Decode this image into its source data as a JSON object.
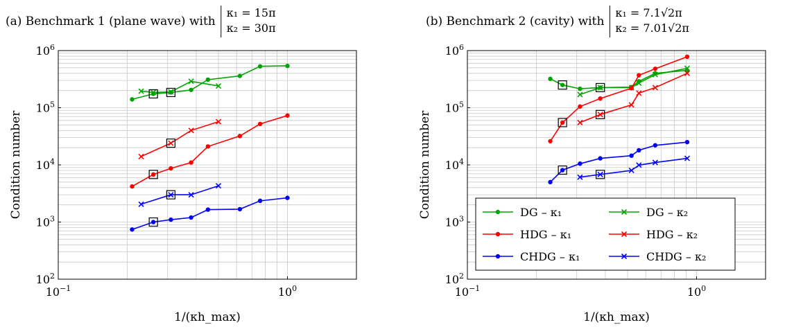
{
  "chart_data": [
    {
      "type": "line",
      "title": "(a) Benchmark 1 (plane wave) with",
      "condition_lines": [
        "κ₁ = 15π",
        "κ₂ = 30π"
      ],
      "xlabel": "1/(κh_max)",
      "ylabel": "Condition number",
      "xscale": "log",
      "yscale": "log",
      "xlim": [
        0.1,
        2
      ],
      "ylim": [
        100,
        1000000
      ],
      "grid": true,
      "series": [
        {
          "name": "DG – κ₁",
          "color": "#00a400",
          "marker": "dot",
          "x": [
            0.21,
            0.26,
            0.31,
            0.38,
            0.45,
            0.62,
            0.76,
            1.0
          ],
          "y": [
            140000,
            175000,
            185000,
            205000,
            310000,
            360000,
            530000,
            540000
          ]
        },
        {
          "name": "DG – κ₂",
          "color": "#00a400",
          "marker": "cross",
          "x": [
            0.23,
            0.26,
            0.31,
            0.38,
            0.5
          ],
          "y": [
            195000,
            185000,
            190000,
            290000,
            240000
          ]
        },
        {
          "name": "HDG – κ₁",
          "color": "#ff0000",
          "marker": "dot",
          "x": [
            0.21,
            0.26,
            0.31,
            0.38,
            0.45,
            0.62,
            0.76,
            1.0
          ],
          "y": [
            4200,
            6800,
            8700,
            11000,
            21000,
            32000,
            52000,
            73000
          ]
        },
        {
          "name": "HDG – κ₂",
          "color": "#ff0000",
          "marker": "cross",
          "x": [
            0.23,
            0.31,
            0.38,
            0.5
          ],
          "y": [
            14000,
            24000,
            40000,
            57000
          ]
        },
        {
          "name": "CHDG – κ₁",
          "color": "#0000ff",
          "marker": "dot",
          "x": [
            0.21,
            0.26,
            0.31,
            0.38,
            0.45,
            0.62,
            0.76,
            1.0
          ],
          "y": [
            740,
            1000,
            1100,
            1200,
            1650,
            1680,
            2350,
            2650
          ]
        },
        {
          "name": "CHDG – κ₂",
          "color": "#0000ff",
          "marker": "cross",
          "x": [
            0.23,
            0.31,
            0.38,
            0.5
          ],
          "y": [
            2050,
            3000,
            3000,
            4300
          ]
        }
      ],
      "boxed_points": [
        {
          "x": 0.26,
          "y": 175000
        },
        {
          "x": 0.31,
          "y": 185000
        },
        {
          "x": 0.31,
          "y": 24000
        },
        {
          "x": 0.26,
          "y": 6800
        },
        {
          "x": 0.31,
          "y": 3000
        },
        {
          "x": 0.26,
          "y": 1000
        }
      ],
      "legend": null
    },
    {
      "type": "line",
      "title": "(b) Benchmark 2 (cavity) with",
      "condition_lines": [
        "κ₁ = 7.1√2π",
        "κ₂ = 7.01√2π"
      ],
      "xlabel": "1/(κh_max)",
      "ylabel": "Condition number",
      "xscale": "log",
      "yscale": "log",
      "xlim": [
        0.1,
        2
      ],
      "ylim": [
        100,
        1000000
      ],
      "grid": true,
      "series": [
        {
          "name": "DG – κ₁",
          "color": "#00a400",
          "marker": "dot",
          "x": [
            0.23,
            0.26,
            0.31,
            0.38,
            0.52,
            0.56,
            0.66,
            0.91
          ],
          "y": [
            320000,
            250000,
            215000,
            225000,
            230000,
            290000,
            400000,
            450000
          ]
        },
        {
          "name": "DG – κ₂",
          "color": "#00a400",
          "marker": "cross",
          "x": [
            0.31,
            0.38,
            0.52,
            0.56,
            0.66,
            0.91
          ],
          "y": [
            170000,
            225000,
            225000,
            270000,
            380000,
            490000
          ]
        },
        {
          "name": "HDG – κ₁",
          "color": "#ff0000",
          "marker": "dot",
          "x": [
            0.23,
            0.26,
            0.31,
            0.38,
            0.52,
            0.56,
            0.66,
            0.91
          ],
          "y": [
            26000,
            55000,
            105000,
            145000,
            220000,
            370000,
            480000,
            780000
          ]
        },
        {
          "name": "HDG – κ₂",
          "color": "#ff0000",
          "marker": "cross",
          "x": [
            0.31,
            0.38,
            0.52,
            0.56,
            0.66,
            0.91
          ],
          "y": [
            55000,
            76000,
            112000,
            180000,
            225000,
            400000
          ]
        },
        {
          "name": "CHDG – κ₁",
          "color": "#0000ff",
          "marker": "dot",
          "x": [
            0.23,
            0.26,
            0.31,
            0.38,
            0.52,
            0.56,
            0.66,
            0.91
          ],
          "y": [
            5000,
            8100,
            10500,
            13000,
            14500,
            18000,
            22000,
            25000
          ]
        },
        {
          "name": "CHDG – κ₂",
          "color": "#0000ff",
          "marker": "cross",
          "x": [
            0.31,
            0.38,
            0.52,
            0.56,
            0.66,
            0.91
          ],
          "y": [
            6100,
            6800,
            8000,
            9900,
            11000,
            13000
          ]
        }
      ],
      "boxed_points": [
        {
          "x": 0.26,
          "y": 250000
        },
        {
          "x": 0.38,
          "y": 225000
        },
        {
          "x": 0.26,
          "y": 55000
        },
        {
          "x": 0.38,
          "y": 76000
        },
        {
          "x": 0.26,
          "y": 8100
        },
        {
          "x": 0.38,
          "y": 6800
        }
      ],
      "legend": {
        "placement": "bottom-left",
        "entries": [
          {
            "label": "DG – κ₁",
            "color": "#00a400",
            "marker": "dot"
          },
          {
            "label": "DG – κ₂",
            "color": "#00a400",
            "marker": "cross"
          },
          {
            "label": "HDG – κ₁",
            "color": "#ff0000",
            "marker": "dot"
          },
          {
            "label": "HDG – κ₂",
            "color": "#ff0000",
            "marker": "cross"
          },
          {
            "label": "CHDG – κ₁",
            "color": "#0000ff",
            "marker": "dot"
          },
          {
            "label": "CHDG – κ₂",
            "color": "#0000ff",
            "marker": "cross"
          }
        ]
      }
    }
  ]
}
